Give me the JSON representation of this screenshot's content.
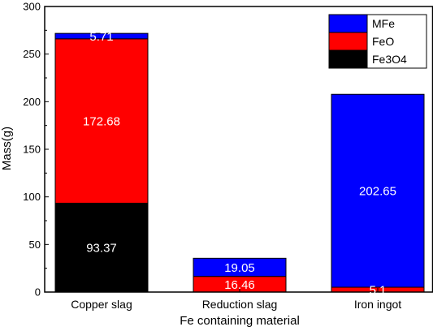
{
  "chart_data": {
    "type": "bar",
    "stacked": true,
    "xlabel": "Fe containing material",
    "ylabel": "Mass(g)",
    "ylim": [
      0,
      300
    ],
    "yticks": [
      0,
      50,
      100,
      150,
      200,
      250,
      300
    ],
    "grid": false,
    "legend_position": "top-right",
    "categories": [
      "Copper slag",
      "Reduction slag",
      "Iron ingot"
    ],
    "series": [
      {
        "name": "Fe3O4",
        "color": "#000000",
        "values": [
          93.37,
          0,
          0
        ],
        "labels": [
          "93.37",
          "",
          ""
        ]
      },
      {
        "name": "FeO",
        "color": "#ff0000",
        "values": [
          172.68,
          16.46,
          5.1
        ],
        "labels": [
          "172.68",
          "16.46",
          "5.1"
        ]
      },
      {
        "name": "MFe",
        "color": "#0000ff",
        "values": [
          5.71,
          19.05,
          202.65
        ],
        "labels": [
          "5.71",
          "19.05",
          "202.65"
        ]
      }
    ],
    "legend_order": [
      "MFe",
      "FeO",
      "Fe3O4"
    ]
  }
}
